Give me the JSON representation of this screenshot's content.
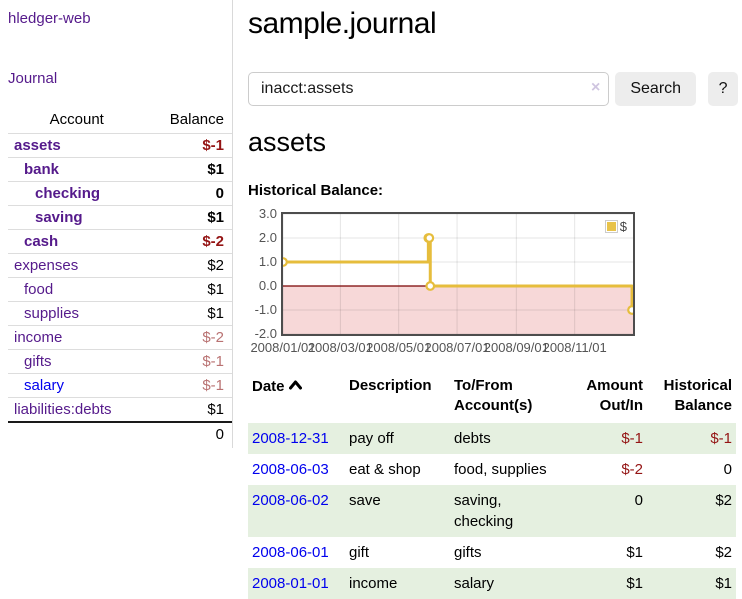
{
  "colors": {
    "accent_gold": "#e6bd3c",
    "negative_red": "#941414",
    "soft_negative_red": "#b97272",
    "link_purple": "#551a8b",
    "link_blue": "#0000ee",
    "row_green": "#e5f0e0",
    "negative_region_pink": "#f7d8d8",
    "zero_line_red": "#7a0000"
  },
  "sidebar": {
    "brand": "hledger-web",
    "journal_link": "Journal",
    "header": {
      "account": "Account",
      "balance": "Balance"
    },
    "rows": [
      {
        "name": "assets",
        "balance": "$-1"
      },
      {
        "name": "bank",
        "balance": "$1"
      },
      {
        "name": "checking",
        "balance": "0"
      },
      {
        "name": "saving",
        "balance": "$1"
      },
      {
        "name": "cash",
        "balance": "$-2"
      },
      {
        "name": "expenses",
        "balance": "$2"
      },
      {
        "name": "food",
        "balance": "$1"
      },
      {
        "name": "supplies",
        "balance": "$1"
      },
      {
        "name": "income",
        "balance": "$-2"
      },
      {
        "name": "gifts",
        "balance": "$-1"
      },
      {
        "name": "salary",
        "balance": "$-1"
      },
      {
        "name": "liabilities:debts",
        "balance": "$1"
      }
    ],
    "total": "0"
  },
  "main": {
    "title": "sample.journal",
    "account_heading": "assets",
    "chart_label": "Historical Balance:"
  },
  "search": {
    "value": "inacct:assets",
    "clear": "×",
    "button": "Search",
    "help": "?"
  },
  "chart_data": {
    "type": "line",
    "title": "Historical Balance:",
    "step": true,
    "series": [
      {
        "name": "$",
        "color": "#e6bd3c",
        "points": [
          [
            "2008-01-01",
            1
          ],
          [
            "2008-06-01",
            2
          ],
          [
            "2008-06-02",
            2
          ],
          [
            "2008-06-03",
            0
          ],
          [
            "2008-12-31",
            -1
          ]
        ]
      }
    ],
    "x_ticks": [
      "2008/01/01",
      "2008/03/01",
      "2008/05/01",
      "2008/07/01",
      "2008/09/01",
      "2008/11/01"
    ],
    "y_ticks": [
      "3.0",
      "2.0",
      "1.0",
      "0.0",
      "-1.0",
      "-2.0"
    ],
    "ylim": [
      -2,
      3
    ],
    "xlim": [
      "2008-01-01",
      "2009-01-01"
    ],
    "grid": true,
    "legend_position": "top-right",
    "negative_region_color": "#f7d8d8",
    "zero_line_color": "#7a0000"
  },
  "register": {
    "headers": {
      "date": "Date",
      "description": "Description",
      "tofrom": "To/From Account(s)",
      "amount": "Amount Out/In",
      "balance": "Historical Balance"
    },
    "rows": [
      {
        "date": "2008-12-31",
        "description": "pay off",
        "accounts": "debts",
        "amount": "$-1",
        "balance": "$-1"
      },
      {
        "date": "2008-06-03",
        "description": "eat & shop",
        "accounts": "food, supplies",
        "amount": "$-2",
        "balance": "0"
      },
      {
        "date": "2008-06-02",
        "description": "save",
        "accounts": "saving, checking",
        "amount": "0",
        "balance": "$2"
      },
      {
        "date": "2008-06-01",
        "description": "gift",
        "accounts": "gifts",
        "amount": "$1",
        "balance": "$2"
      },
      {
        "date": "2008-01-01",
        "description": "income",
        "accounts": "salary",
        "amount": "$1",
        "balance": "$1"
      }
    ]
  }
}
